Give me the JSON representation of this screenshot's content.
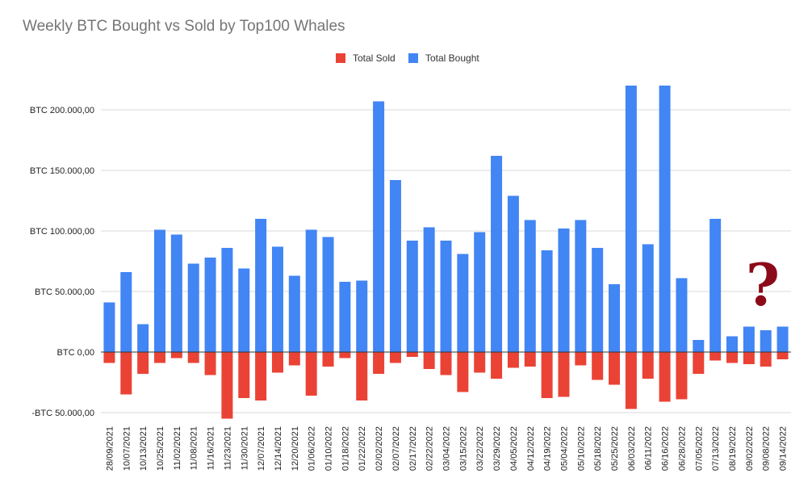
{
  "chart_data": {
    "type": "bar",
    "title": "Weekly BTC Bought vs Sold by Top100 Whales",
    "legend_position": "top",
    "grid": true,
    "categories": [
      "28/09/2021",
      "10/07/2021",
      "10/13/2021",
      "10/25/2021",
      "11/02/2021",
      "11/08/2021",
      "11/16/2021",
      "11/23/2021",
      "11/30/2021",
      "12/07/2021",
      "12/14/2021",
      "12/20/2021",
      "01/06/2022",
      "01/10/2022",
      "01/18/2022",
      "01/22/2022",
      "02/02/2022",
      "02/07/2022",
      "02/17/2022",
      "02/22/2022",
      "03/04/2022",
      "03/15/2022",
      "03/22/2022",
      "03/29/2022",
      "04/05/2022",
      "04/12/2022",
      "04/19/2022",
      "05/04/2022",
      "05/10/2022",
      "05/18/2022",
      "05/25/2022",
      "06/03/2022",
      "06/11/2022",
      "06/16/2022",
      "06/28/2022",
      "07/05/2022",
      "07/13/2022",
      "08/19/2022",
      "09/02/2022",
      "09/08/2022",
      "09/14/2022"
    ],
    "series": [
      {
        "name": "Total Sold",
        "color": "#ea4335",
        "values": [
          -9000,
          -35000,
          -18000,
          -9000,
          -5000,
          -9000,
          -19000,
          -55000,
          -38000,
          -40000,
          -17000,
          -11000,
          -36000,
          -12000,
          -5000,
          -40000,
          -18000,
          -9000,
          -4000,
          -14000,
          -19000,
          -33000,
          -17000,
          -22000,
          -13000,
          -12000,
          -38000,
          -37000,
          -11000,
          -23000,
          -27000,
          -47000,
          -22000,
          -41000,
          -39000,
          -18000,
          -7000,
          -9000,
          -10000,
          -12000,
          -6000
        ]
      },
      {
        "name": "Total Bought",
        "color": "#4285f4",
        "values": [
          41000,
          66000,
          23000,
          101000,
          97000,
          73000,
          78000,
          86000,
          69000,
          110000,
          87000,
          63000,
          101000,
          95000,
          58000,
          59000,
          207000,
          142000,
          92000,
          103000,
          92000,
          81000,
          99000,
          162000,
          129000,
          109000,
          84000,
          102000,
          109000,
          86000,
          56000,
          220000,
          89000,
          220000,
          61000,
          10000,
          110000,
          13000,
          21000,
          18000,
          21000
        ]
      }
    ],
    "ylim": [
      -50000,
      220000
    ],
    "yticks": [
      -50000,
      0,
      50000,
      100000,
      150000,
      200000
    ],
    "ytick_labels": [
      "-BTC 50.000,00",
      "BTC 0,00",
      "BTC 50.000,00",
      "BTC 100.000,00",
      "BTC 150.000,00",
      "BTC 200.000,00"
    ],
    "annotation": "?",
    "annotation_color": "#8b0a1a"
  }
}
